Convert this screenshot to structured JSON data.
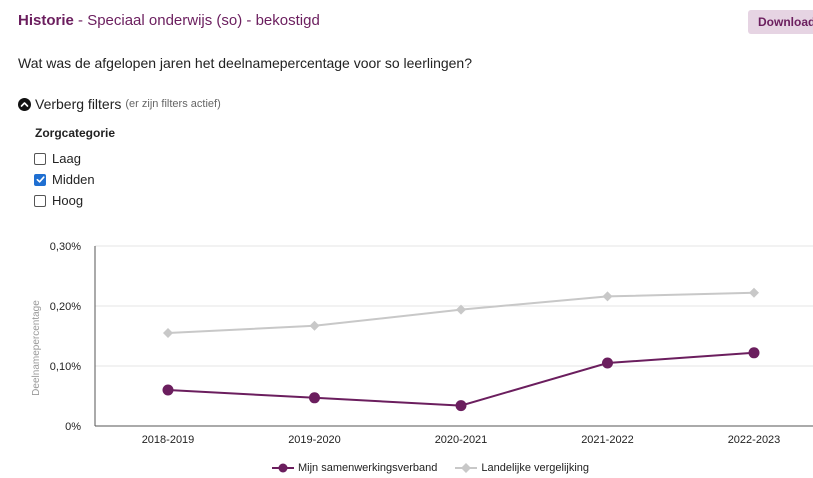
{
  "header": {
    "title_strong": "Historie",
    "title_rest": " - Speciaal onderwijs (so) - bekostigd",
    "download_label": "Download"
  },
  "question": "Wat was de afgelopen jaren het deelnamepercentage voor so leerlingen?",
  "filters": {
    "toggle_label": "Verberg filters",
    "toggle_note": "(er zijn filters actief)",
    "group_label": "Zorgcategorie",
    "options": [
      {
        "label": "Laag",
        "checked": false
      },
      {
        "label": "Midden",
        "checked": true
      },
      {
        "label": "Hoog",
        "checked": false
      }
    ]
  },
  "chart_data": {
    "type": "line",
    "categories": [
      "2018-2019",
      "2019-2020",
      "2020-2021",
      "2021-2022",
      "2022-2023"
    ],
    "ylabel": "Deelnamepercentage",
    "ylim": [
      0,
      0.3
    ],
    "yticks": [
      0,
      0.1,
      0.2,
      0.3
    ],
    "ytick_labels": [
      "0%",
      "0,10%",
      "0,20%",
      "0,30%"
    ],
    "grid": true,
    "legend_position": "bottom",
    "series": [
      {
        "name": "Mijn samenwerkingsverband",
        "values": [
          0.06,
          0.047,
          0.034,
          0.105,
          0.122
        ],
        "color": "#6b1e5e",
        "marker": "circle"
      },
      {
        "name": "Landelijke vergelijking",
        "values": [
          0.155,
          0.167,
          0.194,
          0.216,
          0.222
        ],
        "color": "#c8c8c8",
        "marker": "diamond"
      }
    ]
  }
}
